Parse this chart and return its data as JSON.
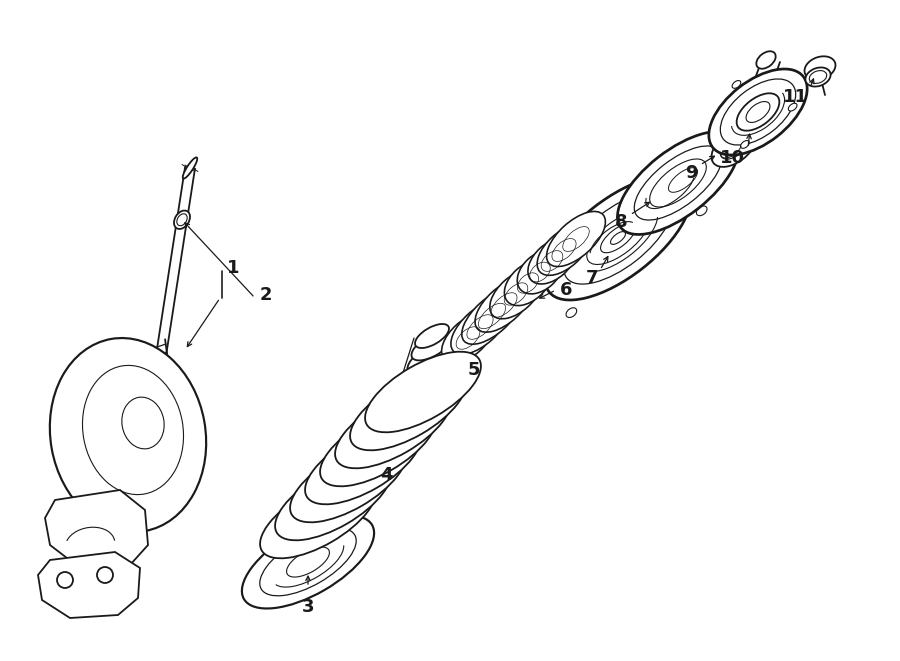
{
  "bg_color": "#ffffff",
  "line_color": "#1a1a1a",
  "fig_width": 9.0,
  "fig_height": 6.61,
  "dpi": 100,
  "font_size": 13
}
